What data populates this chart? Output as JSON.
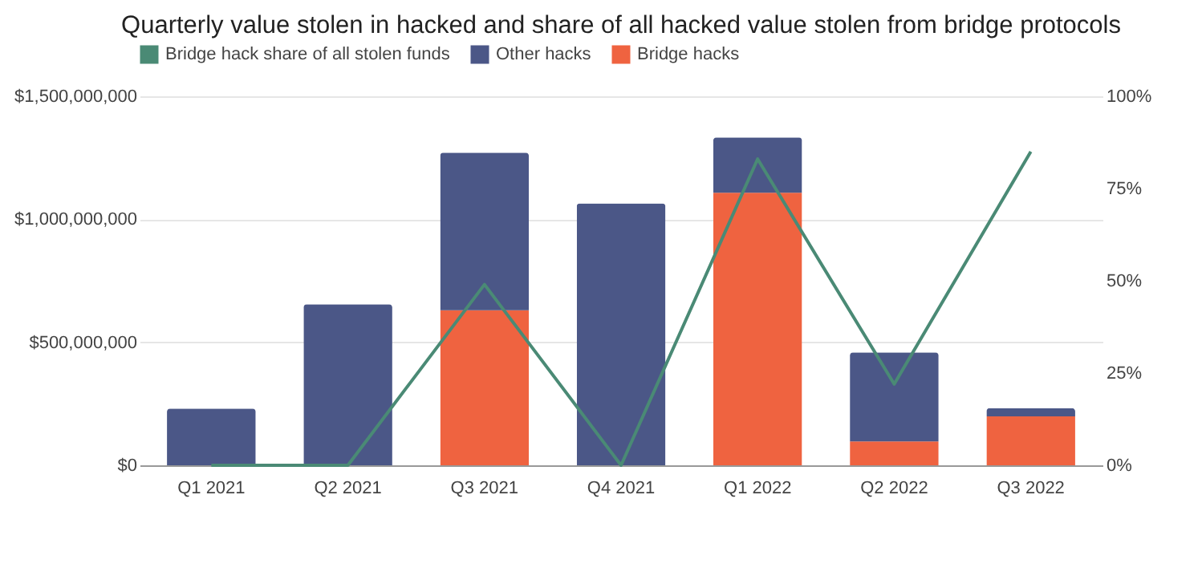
{
  "chart_data": {
    "type": "bar",
    "title": "Quarterly value stolen in hacked and share of all hacked value stolen from bridge protocols",
    "categories": [
      "Q1 2021",
      "Q2 2021",
      "Q3 2021",
      "Q4 2021",
      "Q1 2022",
      "Q2 2022",
      "Q3 2022"
    ],
    "stacked": true,
    "series": [
      {
        "name": "Bridge hacks",
        "color": "#ef6340",
        "values": [
          0,
          0,
          630000000,
          0,
          1108000000,
          97000000,
          199000000
        ]
      },
      {
        "name": "Other hacks",
        "color": "#4b5787",
        "values": [
          231000000,
          655000000,
          641000000,
          1065000000,
          225000000,
          362000000,
          33000000
        ]
      },
      {
        "name": "Bridge hack share of all stolen funds",
        "type": "line",
        "axis": "y2",
        "color": "#4a8a75",
        "values": [
          0,
          0,
          49,
          0,
          83,
          22,
          85
        ]
      }
    ],
    "ylim": [
      0,
      1500000000
    ],
    "yticks": [
      {
        "value": 0,
        "label": "$0"
      },
      {
        "value": 500000000,
        "label": "$500,000,000"
      },
      {
        "value": 1000000000,
        "label": "$1,000,000,000"
      },
      {
        "value": 1500000000,
        "label": "$1,500,000,000"
      }
    ],
    "y2lim": [
      0,
      100
    ],
    "y2ticks": [
      {
        "value": 0,
        "label": "0%"
      },
      {
        "value": 25,
        "label": "25%"
      },
      {
        "value": 50,
        "label": "50%"
      },
      {
        "value": 75,
        "label": "75%"
      },
      {
        "value": 100,
        "label": "100%"
      }
    ],
    "grid": "y",
    "legend": "top",
    "marker": "none",
    "line_style": "solid"
  }
}
